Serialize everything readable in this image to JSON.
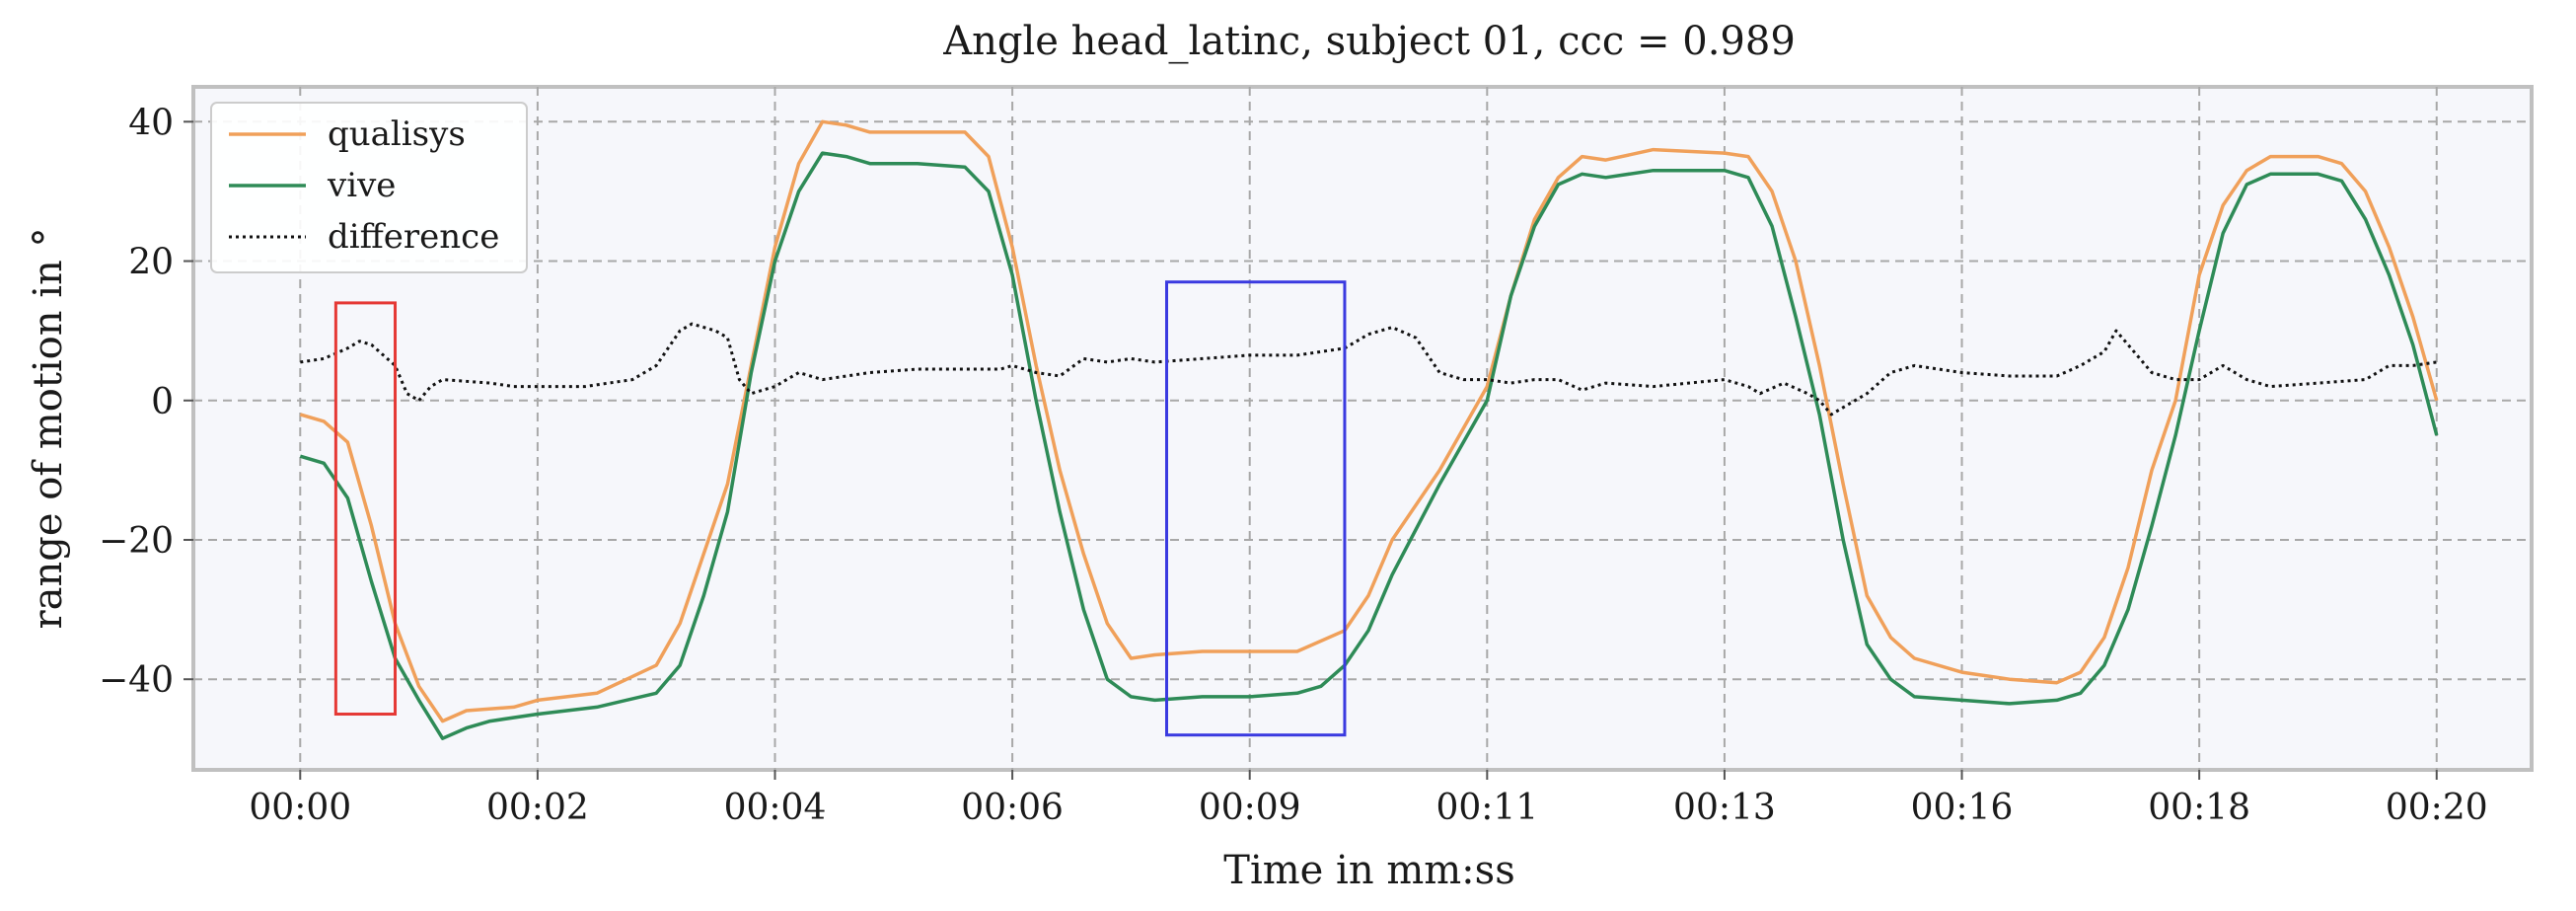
{
  "chart_data": {
    "type": "line",
    "title": "Angle head_latinc, subject 01, ccc = 0.989",
    "xlabel": "Time in mm:ss",
    "ylabel": "range of motion in °",
    "xlim": [
      -0.9,
      18.8
    ],
    "ylim": [
      -53,
      45
    ],
    "x_ticks": [
      0,
      2,
      4,
      6,
      8,
      10,
      12,
      14,
      16,
      18
    ],
    "x_tick_labels": [
      "00:00",
      "00:02",
      "00:04",
      "00:06",
      "00:09",
      "00:11",
      "00:13",
      "00:16",
      "00:18",
      "00:20"
    ],
    "y_ticks": [
      -40,
      -20,
      0,
      20,
      40
    ],
    "y_tick_labels": [
      "−40",
      "−20",
      "0",
      "20",
      "40"
    ],
    "grid": true,
    "legend_position": "top-left",
    "series": [
      {
        "name": "qualisys",
        "color": "#f0a05a",
        "style": "solid",
        "points": [
          [
            0,
            -2
          ],
          [
            0.2,
            -3
          ],
          [
            0.4,
            -6
          ],
          [
            0.6,
            -18
          ],
          [
            0.8,
            -32
          ],
          [
            1.0,
            -41
          ],
          [
            1.2,
            -46
          ],
          [
            1.4,
            -44.5
          ],
          [
            1.8,
            -44
          ],
          [
            2.0,
            -43
          ],
          [
            2.5,
            -42
          ],
          [
            3.0,
            -38
          ],
          [
            3.2,
            -32
          ],
          [
            3.4,
            -22
          ],
          [
            3.6,
            -12
          ],
          [
            3.8,
            5
          ],
          [
            4.0,
            22
          ],
          [
            4.2,
            34
          ],
          [
            4.4,
            40
          ],
          [
            4.6,
            39.5
          ],
          [
            4.8,
            38.5
          ],
          [
            5.2,
            38.5
          ],
          [
            5.6,
            38.5
          ],
          [
            5.8,
            35
          ],
          [
            6.0,
            22
          ],
          [
            6.2,
            5
          ],
          [
            6.4,
            -10
          ],
          [
            6.6,
            -22
          ],
          [
            6.8,
            -32
          ],
          [
            7.0,
            -37
          ],
          [
            7.2,
            -36.5
          ],
          [
            7.6,
            -36
          ],
          [
            8.0,
            -36
          ],
          [
            8.4,
            -36
          ],
          [
            8.8,
            -33
          ],
          [
            9.0,
            -28
          ],
          [
            9.2,
            -20
          ],
          [
            9.6,
            -10
          ],
          [
            10.0,
            2
          ],
          [
            10.2,
            15
          ],
          [
            10.4,
            26
          ],
          [
            10.6,
            32
          ],
          [
            10.8,
            35
          ],
          [
            11.0,
            34.5
          ],
          [
            11.4,
            36
          ],
          [
            12.0,
            35.5
          ],
          [
            12.2,
            35
          ],
          [
            12.4,
            30
          ],
          [
            12.6,
            20
          ],
          [
            12.8,
            5
          ],
          [
            13.0,
            -12
          ],
          [
            13.2,
            -28
          ],
          [
            13.4,
            -34
          ],
          [
            13.6,
            -37
          ],
          [
            14.0,
            -39
          ],
          [
            14.4,
            -40
          ],
          [
            14.8,
            -40.5
          ],
          [
            15.0,
            -39
          ],
          [
            15.2,
            -34
          ],
          [
            15.4,
            -24
          ],
          [
            15.6,
            -10
          ],
          [
            15.8,
            0
          ],
          [
            16.0,
            18
          ],
          [
            16.2,
            28
          ],
          [
            16.4,
            33
          ],
          [
            16.6,
            35
          ],
          [
            17.0,
            35
          ],
          [
            17.2,
            34
          ],
          [
            17.4,
            30
          ],
          [
            17.6,
            22
          ],
          [
            17.8,
            12
          ],
          [
            18.0,
            0
          ]
        ]
      },
      {
        "name": "vive",
        "color": "#2e8b57",
        "style": "solid",
        "points": [
          [
            0,
            -8
          ],
          [
            0.2,
            -9
          ],
          [
            0.4,
            -14
          ],
          [
            0.6,
            -26
          ],
          [
            0.8,
            -37
          ],
          [
            1.0,
            -43
          ],
          [
            1.2,
            -48.5
          ],
          [
            1.4,
            -47
          ],
          [
            1.6,
            -46
          ],
          [
            2.0,
            -45
          ],
          [
            2.5,
            -44
          ],
          [
            3.0,
            -42
          ],
          [
            3.2,
            -38
          ],
          [
            3.4,
            -28
          ],
          [
            3.6,
            -16
          ],
          [
            3.8,
            4
          ],
          [
            4.0,
            20
          ],
          [
            4.2,
            30
          ],
          [
            4.4,
            35.5
          ],
          [
            4.6,
            35
          ],
          [
            4.8,
            34
          ],
          [
            5.2,
            34
          ],
          [
            5.6,
            33.5
          ],
          [
            5.8,
            30
          ],
          [
            6.0,
            18
          ],
          [
            6.2,
            0
          ],
          [
            6.4,
            -16
          ],
          [
            6.6,
            -30
          ],
          [
            6.8,
            -40
          ],
          [
            7.0,
            -42.5
          ],
          [
            7.2,
            -43
          ],
          [
            7.6,
            -42.5
          ],
          [
            8.0,
            -42.5
          ],
          [
            8.4,
            -42
          ],
          [
            8.6,
            -41
          ],
          [
            8.8,
            -38
          ],
          [
            9.0,
            -33
          ],
          [
            9.2,
            -25
          ],
          [
            9.6,
            -12
          ],
          [
            10.0,
            0
          ],
          [
            10.2,
            15
          ],
          [
            10.4,
            25
          ],
          [
            10.6,
            31
          ],
          [
            10.8,
            32.5
          ],
          [
            11.0,
            32
          ],
          [
            11.4,
            33
          ],
          [
            12.0,
            33
          ],
          [
            12.2,
            32
          ],
          [
            12.4,
            25
          ],
          [
            12.6,
            12
          ],
          [
            12.8,
            -2
          ],
          [
            13.0,
            -20
          ],
          [
            13.2,
            -35
          ],
          [
            13.4,
            -40
          ],
          [
            13.6,
            -42.5
          ],
          [
            14.0,
            -43
          ],
          [
            14.4,
            -43.5
          ],
          [
            14.8,
            -43
          ],
          [
            15.0,
            -42
          ],
          [
            15.2,
            -38
          ],
          [
            15.4,
            -30
          ],
          [
            15.6,
            -18
          ],
          [
            15.8,
            -5
          ],
          [
            16.0,
            10
          ],
          [
            16.2,
            24
          ],
          [
            16.4,
            31
          ],
          [
            16.6,
            32.5
          ],
          [
            17.0,
            32.5
          ],
          [
            17.2,
            31.5
          ],
          [
            17.4,
            26
          ],
          [
            17.6,
            18
          ],
          [
            17.8,
            8
          ],
          [
            18.0,
            -5
          ]
        ]
      },
      {
        "name": "difference",
        "color": "#111111",
        "style": "dotted",
        "points": [
          [
            0,
            5.5
          ],
          [
            0.2,
            6
          ],
          [
            0.4,
            7.5
          ],
          [
            0.5,
            8.5
          ],
          [
            0.6,
            8
          ],
          [
            0.8,
            5
          ],
          [
            0.9,
            1
          ],
          [
            1.0,
            0
          ],
          [
            1.1,
            2
          ],
          [
            1.2,
            3
          ],
          [
            1.6,
            2.5
          ],
          [
            1.8,
            2
          ],
          [
            2.0,
            2
          ],
          [
            2.4,
            2
          ],
          [
            2.8,
            3
          ],
          [
            3.0,
            5
          ],
          [
            3.2,
            10
          ],
          [
            3.3,
            11
          ],
          [
            3.5,
            10
          ],
          [
            3.6,
            9
          ],
          [
            3.7,
            3
          ],
          [
            3.8,
            1
          ],
          [
            4.0,
            2
          ],
          [
            4.2,
            4
          ],
          [
            4.4,
            3
          ],
          [
            4.8,
            4
          ],
          [
            5.2,
            4.5
          ],
          [
            5.6,
            4.5
          ],
          [
            5.9,
            4.5
          ],
          [
            6.0,
            5
          ],
          [
            6.2,
            4
          ],
          [
            6.4,
            3.5
          ],
          [
            6.6,
            6
          ],
          [
            6.8,
            5.5
          ],
          [
            7.0,
            6
          ],
          [
            7.2,
            5.5
          ],
          [
            7.6,
            6
          ],
          [
            8.0,
            6.5
          ],
          [
            8.4,
            6.5
          ],
          [
            8.8,
            7.5
          ],
          [
            9.0,
            9.5
          ],
          [
            9.2,
            10.5
          ],
          [
            9.4,
            9
          ],
          [
            9.6,
            4
          ],
          [
            9.8,
            3
          ],
          [
            10.0,
            3
          ],
          [
            10.2,
            2.5
          ],
          [
            10.4,
            3
          ],
          [
            10.6,
            3
          ],
          [
            10.8,
            1.5
          ],
          [
            11.0,
            2.5
          ],
          [
            11.4,
            2
          ],
          [
            12.0,
            3
          ],
          [
            12.2,
            2
          ],
          [
            12.3,
            1
          ],
          [
            12.5,
            2.5
          ],
          [
            12.7,
            1
          ],
          [
            12.8,
            0
          ],
          [
            12.9,
            -2
          ],
          [
            13.0,
            -1
          ],
          [
            13.2,
            1
          ],
          [
            13.4,
            4
          ],
          [
            13.6,
            5
          ],
          [
            14.0,
            4
          ],
          [
            14.4,
            3.5
          ],
          [
            14.6,
            3.5
          ],
          [
            14.8,
            3.5
          ],
          [
            15.0,
            5
          ],
          [
            15.2,
            7
          ],
          [
            15.3,
            10
          ],
          [
            15.4,
            8
          ],
          [
            15.6,
            4
          ],
          [
            15.8,
            3
          ],
          [
            16.0,
            3
          ],
          [
            16.2,
            5
          ],
          [
            16.4,
            3
          ],
          [
            16.6,
            2
          ],
          [
            17.0,
            2.5
          ],
          [
            17.4,
            3
          ],
          [
            17.6,
            5
          ],
          [
            17.8,
            5
          ],
          [
            18.0,
            5.5
          ]
        ]
      }
    ],
    "annotations": [
      {
        "type": "rectangle",
        "color": "#e53935",
        "x_range": [
          0.3,
          0.8
        ],
        "y_range": [
          -45,
          14
        ]
      },
      {
        "type": "rectangle",
        "color": "#3a3ae0",
        "x_range": [
          7.3,
          8.8
        ],
        "y_range": [
          -48,
          17
        ]
      }
    ]
  }
}
